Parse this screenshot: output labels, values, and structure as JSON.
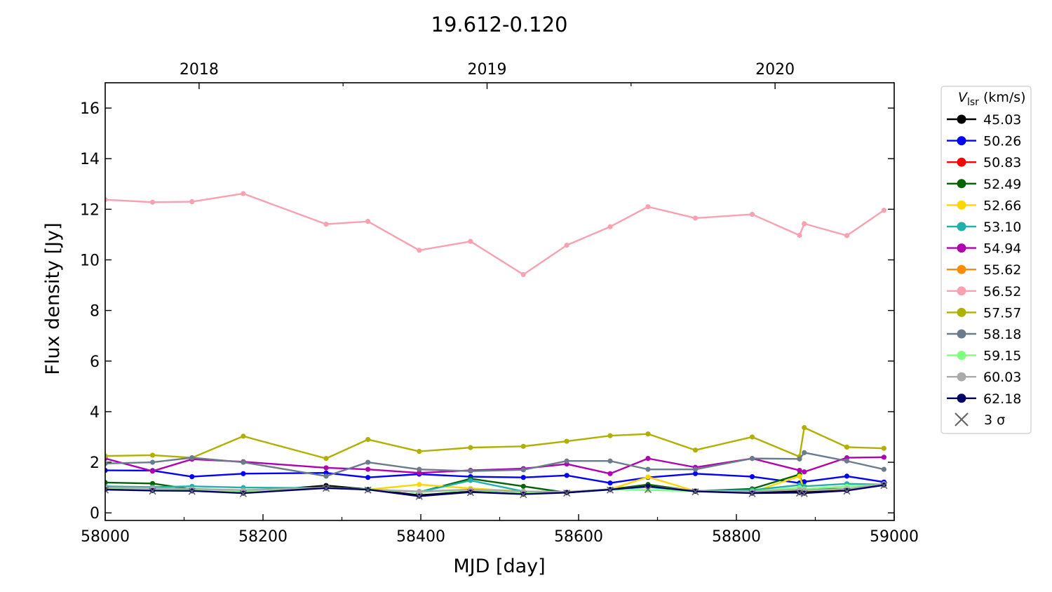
{
  "chart_data": {
    "type": "line",
    "title": "19.612-0.120",
    "xlabel": "MJD [day]",
    "ylabel": "Flux density [Jy]",
    "xlim": [
      58000,
      59000
    ],
    "ylim": [
      -0.3,
      17
    ],
    "x_ticks": [
      58000,
      58200,
      58400,
      58600,
      58800,
      59000
    ],
    "y_ticks": [
      0,
      2,
      4,
      6,
      8,
      10,
      12,
      14,
      16
    ],
    "top_axis": {
      "ticks": [
        {
          "label": "2018",
          "mjd": 58119
        },
        {
          "label": "2019",
          "mjd": 58484
        },
        {
          "label": "2020",
          "mjd": 58849
        }
      ]
    },
    "legend": {
      "title_symbol": "V",
      "title_subscript": "lsr",
      "title_unit": "(km/s)",
      "placement": "outside-right",
      "sigma_label": "3 σ"
    },
    "x": [
      58000,
      58060,
      58110,
      58175,
      58280,
      58333,
      58398,
      58463,
      58530,
      58585,
      58640,
      58688,
      58748,
      58820,
      58880,
      58886,
      58940,
      58987
    ],
    "series": [
      {
        "name": "45.03",
        "color": "#000000",
        "values": [
          0.93,
          0.9,
          0.88,
          0.82,
          1.08,
          0.93,
          0.7,
          0.84,
          0.77,
          0.82,
          0.93,
          1.07,
          0.86,
          0.82,
          0.85,
          0.85,
          0.9,
          1.1
        ]
      },
      {
        "name": "50.26",
        "color": "#0000ff",
        "values": [
          1.68,
          1.67,
          1.43,
          1.55,
          1.58,
          1.4,
          1.53,
          1.43,
          1.4,
          1.48,
          1.18,
          1.4,
          1.55,
          1.43,
          1.18,
          1.23,
          1.45,
          1.22
        ]
      },
      {
        "name": "50.83",
        "color": "#ff0000",
        "values": [
          null,
          null,
          null,
          null,
          null,
          null,
          null,
          null,
          null,
          null,
          null,
          null,
          null,
          null,
          null,
          null,
          null,
          null
        ]
      },
      {
        "name": "52.49",
        "color": "#006400",
        "values": [
          1.2,
          1.16,
          0.93,
          0.85,
          1.0,
          0.93,
          0.82,
          1.35,
          1.05,
          0.8,
          0.93,
          1.12,
          0.86,
          0.95,
          1.52,
          0.95,
          0.95,
          1.1
        ]
      },
      {
        "name": "52.66",
        "color": "#ffd700",
        "values": [
          1.0,
          0.95,
          0.95,
          0.88,
          1.0,
          0.92,
          1.12,
          0.97,
          0.85,
          0.82,
          0.93,
          1.42,
          0.86,
          0.82,
          1.45,
          0.88,
          0.95,
          1.1
        ]
      },
      {
        "name": "53.10",
        "color": "#20b2aa",
        "values": [
          1.05,
          1.02,
          1.05,
          1.0,
          0.98,
          0.93,
          0.82,
          1.28,
          0.85,
          0.82,
          0.93,
          1.02,
          0.86,
          0.9,
          1.1,
          1.05,
          1.15,
          1.12
        ]
      },
      {
        "name": "54.94",
        "color": "#b000b0",
        "values": [
          2.15,
          1.65,
          2.12,
          2.02,
          1.78,
          1.72,
          1.58,
          1.68,
          1.75,
          1.93,
          1.55,
          2.15,
          1.8,
          2.15,
          1.68,
          1.62,
          2.18,
          2.2
        ]
      },
      {
        "name": "55.62",
        "color": "#ff8c00",
        "values": [
          null,
          null,
          null,
          null,
          null,
          null,
          null,
          null,
          null,
          null,
          null,
          null,
          null,
          null,
          null,
          null,
          null,
          null
        ]
      },
      {
        "name": "56.52",
        "color": "#f8a1b0",
        "values": [
          12.38,
          12.28,
          12.3,
          12.62,
          11.41,
          11.52,
          10.38,
          10.73,
          9.42,
          10.58,
          11.31,
          12.1,
          11.65,
          11.8,
          10.97,
          11.43,
          10.96,
          11.96
        ]
      },
      {
        "name": "57.57",
        "color": "#b0b000",
        "values": [
          2.25,
          2.28,
          2.18,
          3.03,
          2.15,
          2.9,
          2.43,
          2.58,
          2.63,
          2.83,
          3.05,
          3.12,
          2.48,
          3.0,
          2.22,
          3.37,
          2.6,
          2.55
        ]
      },
      {
        "name": "58.18",
        "color": "#6a7b8c",
        "values": [
          1.95,
          2.0,
          2.18,
          2.0,
          1.45,
          2.0,
          1.72,
          1.65,
          1.7,
          2.05,
          2.05,
          1.72,
          1.72,
          2.15,
          2.13,
          2.38,
          2.05,
          1.72
        ]
      },
      {
        "name": "59.15",
        "color": "#7fff7f",
        "values": [
          0.95,
          0.92,
          0.9,
          0.85,
          0.98,
          0.93,
          0.82,
          0.9,
          0.8,
          0.82,
          0.93,
          0.9,
          0.86,
          0.85,
          1.0,
          0.95,
          1.05,
          1.12
        ]
      },
      {
        "name": "60.03",
        "color": "#aaaaaa",
        "values": [
          1.0,
          0.98,
          0.95,
          0.9,
          1.0,
          0.92,
          0.85,
          0.92,
          0.85,
          0.83,
          0.93,
          1.05,
          0.88,
          0.85,
          0.92,
          0.9,
          0.95,
          1.15
        ]
      },
      {
        "name": "62.18",
        "color": "#000066",
        "values": [
          0.92,
          0.88,
          0.87,
          0.78,
          0.98,
          0.92,
          0.66,
          0.82,
          0.74,
          0.8,
          0.92,
          1.05,
          0.85,
          0.78,
          0.8,
          0.78,
          0.88,
          1.1
        ]
      }
    ],
    "sigma_markers": {
      "x": [
        58000,
        58060,
        58110,
        58175,
        58280,
        58333,
        58398,
        58463,
        58530,
        58585,
        58640,
        58688,
        58748,
        58820,
        58880,
        58886,
        58940,
        58987
      ],
      "values": [
        0.9,
        0.86,
        0.85,
        0.76,
        0.97,
        0.9,
        0.65,
        0.8,
        0.72,
        0.78,
        0.9,
        0.92,
        0.83,
        0.76,
        0.78,
        0.76,
        0.86,
        1.08
      ]
    }
  }
}
